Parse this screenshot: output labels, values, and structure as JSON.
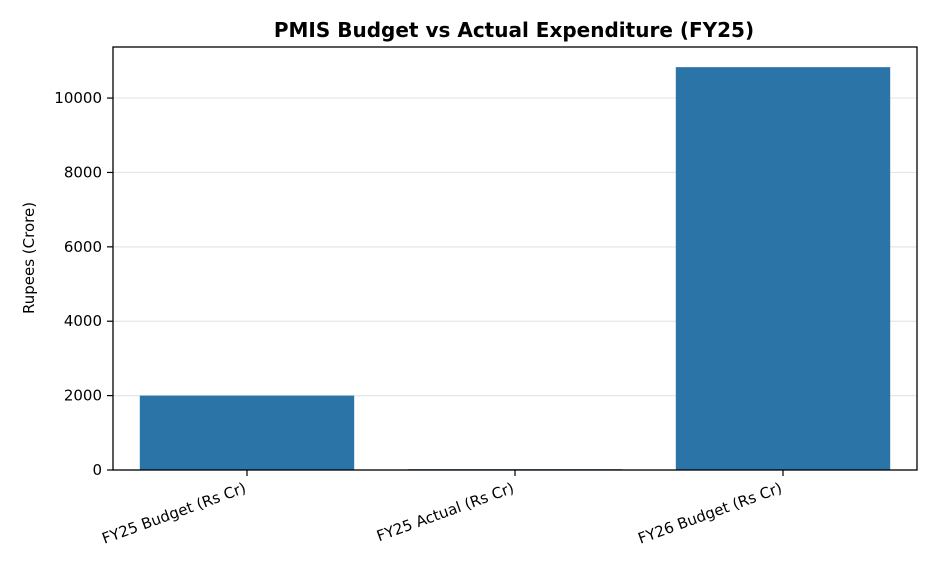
{
  "chart_data": {
    "type": "bar",
    "title": "PMIS Budget vs Actual Expenditure (FY25)",
    "xlabel": "",
    "ylabel": "Rupees (Crore)",
    "categories": [
      "FY25 Budget (Rs Cr)",
      "FY25 Actual (Rs Cr)",
      "FY26 Budget (Rs Cr)"
    ],
    "values": [
      2000,
      21,
      10831
    ],
    "ylim": [
      0,
      11373
    ],
    "yticks": [
      0,
      2000,
      4000,
      6000,
      8000,
      10000
    ],
    "ytick_labels": [
      "0",
      "2000",
      "4000",
      "6000",
      "8000",
      "10000"
    ],
    "grid": "horizontal",
    "bar_color": "#2a74a8",
    "grid_color": "#e6e6e6"
  }
}
